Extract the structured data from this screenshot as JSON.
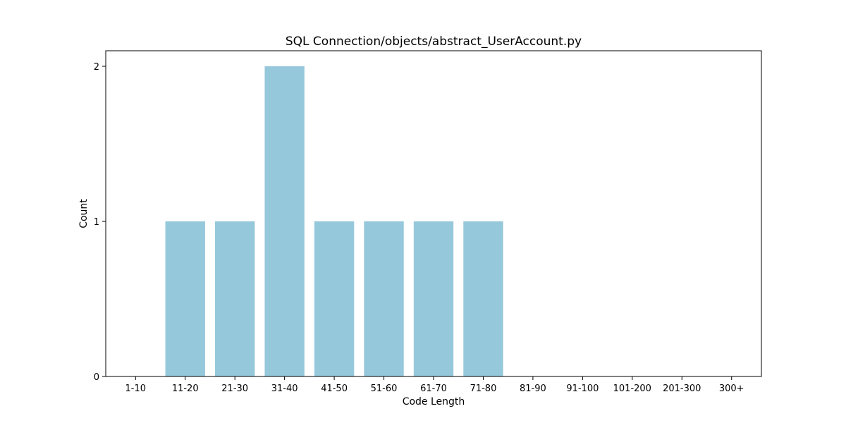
{
  "chart_data": {
    "type": "bar",
    "title": "SQL Connection/objects/abstract_UserAccount.py",
    "xlabel": "Code Length",
    "ylabel": "Count",
    "categories": [
      "1-10",
      "11-20",
      "21-30",
      "31-40",
      "41-50",
      "51-60",
      "61-70",
      "71-80",
      "81-90",
      "91-100",
      "101-200",
      "201-300",
      "300+"
    ],
    "values": [
      0,
      1,
      1,
      2,
      1,
      1,
      1,
      1,
      0,
      0,
      0,
      0,
      0
    ],
    "yticks": [
      0,
      1,
      2
    ],
    "ylim": [
      0,
      2.1
    ],
    "bar_color": "#96c8dc",
    "grid": false,
    "legend": "none"
  }
}
